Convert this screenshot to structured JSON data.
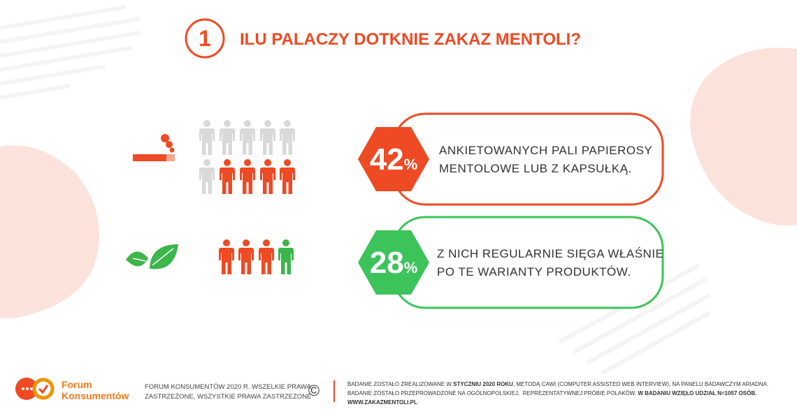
{
  "header": {
    "number": "1",
    "title": "ILU PALACZY DOTKNIE ZAKAZ MENTOLI?"
  },
  "stats": [
    {
      "value": "42",
      "unit": "%",
      "lines": [
        "ANKIETOWANYCH PALI PAPIEROSY",
        "MENTOLOWE LUB Z KAPSUŁKĄ."
      ]
    },
    {
      "value": "28",
      "unit": "%",
      "lines": [
        "Z NICH REGULARNIE SIĘGA WŁAŚNIE",
        "PO TE WARIANTY PRODUKTÓW."
      ]
    }
  ],
  "footer": {
    "logo": [
      "Forum",
      "Konsumentów"
    ],
    "copyright": [
      "FORUM KONSUMENTÓW 2020 R. WSZELKIE PRAWA",
      "ZASTRZEŻONE, WSZYSTKIE PRAWA ZASTRZEŻONE"
    ],
    "copyright_symbol": "©",
    "method": [
      [
        "BADANIE ZOSTAŁO ZREALIZOWANE W ",
        "STYCZNIU 2020 ROKU",
        ", METODĄ CAWI (COMPUTER ASSISTED WEB INTERVIEW), NA PANELU BADAWCZYM ARIADNA."
      ],
      [
        "BADANIE ZOSTAŁO PRZEPROWADZONE NA OGÓLNOPOLSKIEJ,  REPREZENTATYWNEJ PRÓBIE POLAKÓW. ",
        "W BADANIU WZIĘŁO UDZIAŁ N=1057 OSÓB."
      ],
      [
        "WWW.ZAKAZMENTOLI.PL"
      ]
    ]
  }
}
